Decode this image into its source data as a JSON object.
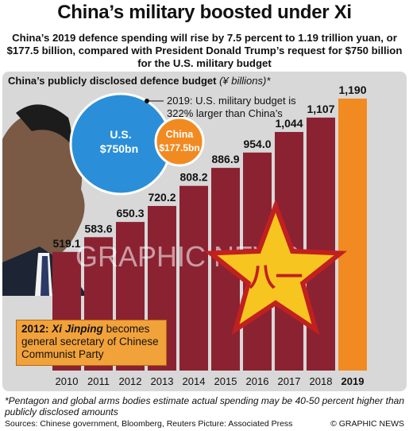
{
  "header": {
    "title": "China’s military boosted under Xi",
    "subtitle": "China’s 2019 defence spending will rise by 7.5 percent to 1.19 trillion yuan, or $177.5 billion, compared with President Donald Trump’s request for $750 billion for the U.S. military budget"
  },
  "chart_heading": {
    "main": "China’s publicly disclosed defence budget",
    "unit": "(¥ billions)*"
  },
  "comparison": {
    "us_label": "U.S.",
    "us_value": "$750bn",
    "china_label": "China",
    "china_value": "$177.5bn",
    "note_line1": "2019: U.S. military budget is",
    "note_line2": "322% larger than China’s",
    "colors": {
      "us": "#2a8fd8",
      "china": "#f28a22"
    }
  },
  "callout": {
    "year": "2012:",
    "name": "Xi Jinping",
    "text": "becomes general secretary of Chinese Communist Party"
  },
  "watermark": "GRAPHIC NEWS",
  "chart_data": {
    "type": "bar",
    "categories": [
      "2010",
      "2011",
      "2012",
      "2013",
      "2014",
      "2015",
      "2016",
      "2017",
      "2018",
      "2019"
    ],
    "values": [
      519.1,
      583.6,
      650.3,
      720.2,
      808.2,
      886.9,
      954.0,
      1044,
      1107,
      1190
    ],
    "value_labels": [
      "519.1",
      "583.6",
      "650.3",
      "720.2",
      "808.2",
      "886.9",
      "954.0",
      "1,044",
      "1,107",
      "1,190"
    ],
    "highlight_category": "2019",
    "colors": {
      "bar": "#8b2232",
      "highlight": "#f28a22",
      "background": "#d8d8d8"
    },
    "ylim": [
      0,
      1190
    ],
    "grid": false
  },
  "footnote": "*Pentagon and global arms bodies estimate actual spending may be 40-50 percent higher than publicly disclosed amounts",
  "sources": "Sources: Chinese government, Bloomberg, Reuters    Picture: Associated Press",
  "credit": "© GRAPHIC NEWS"
}
